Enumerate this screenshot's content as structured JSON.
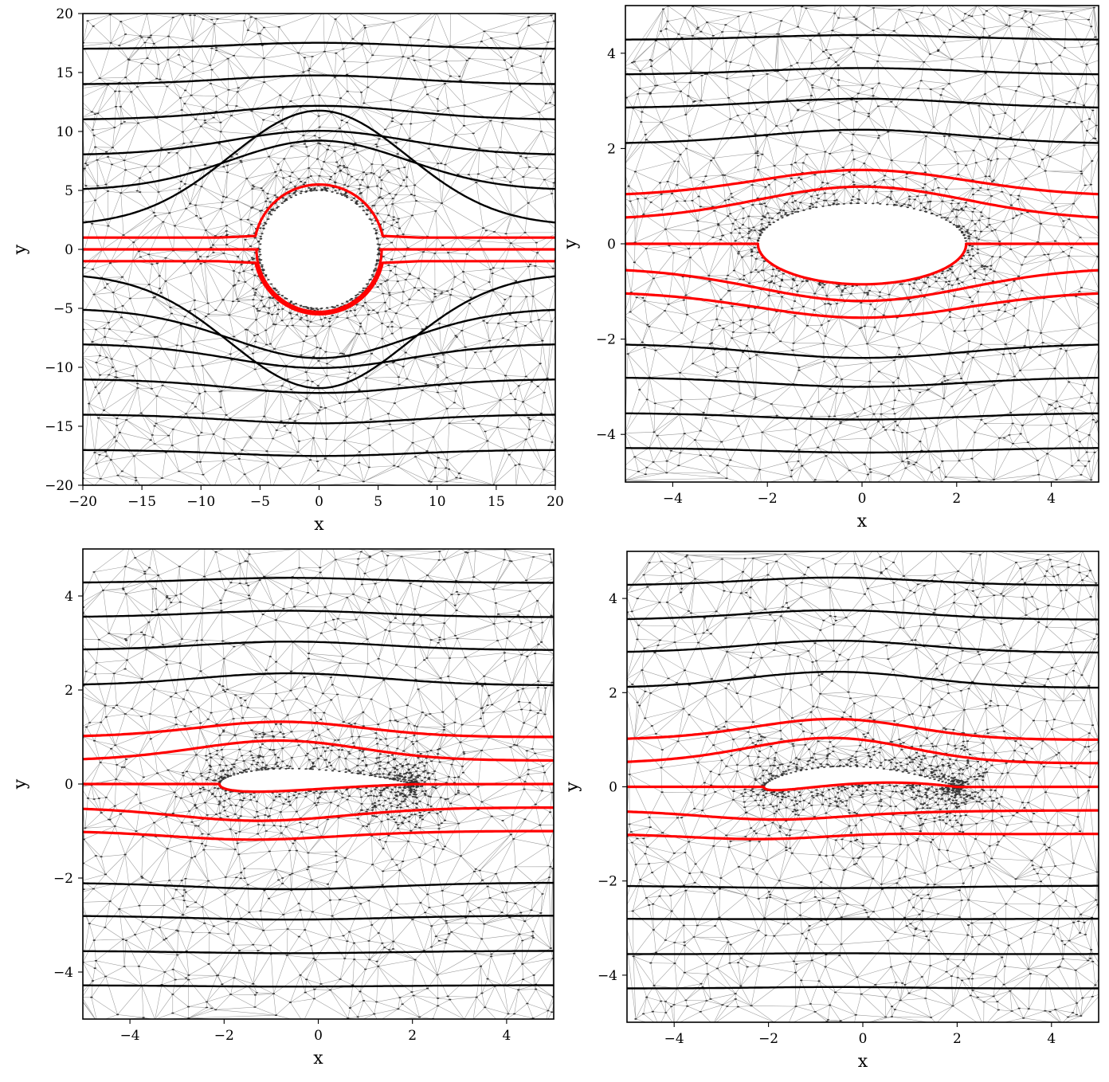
{
  "chart_data": [
    {
      "type": "line",
      "title": "",
      "panel": "top-left",
      "xlabel": "x",
      "ylabel": "y",
      "xlim": [
        -20,
        20
      ],
      "ylim": [
        -20,
        20
      ],
      "xticks": [
        -20,
        -15,
        -10,
        -5,
        0,
        5,
        10,
        15,
        20
      ],
      "yticks": [
        -20,
        -15,
        -10,
        -5,
        0,
        5,
        10,
        15,
        20
      ],
      "xtick_labels": [
        "−20",
        "−15",
        "−10",
        "−5",
        "0",
        "5",
        "10",
        "15",
        "20"
      ],
      "ytick_labels": [
        "−20",
        "−15",
        "−10",
        "−5",
        "0",
        "5",
        "10",
        "15",
        "20"
      ],
      "obstacle": {
        "shape": "circle",
        "center": [
          0,
          0
        ],
        "radius": 5
      },
      "mesh": "triangular",
      "streamlines_black_y0": [
        17,
        14,
        11,
        8,
        5,
        2,
        -2,
        -5,
        -8,
        -11,
        -14,
        -17
      ],
      "streamlines_red_y0": [
        1,
        0,
        -1
      ],
      "colors": {
        "black": "#000000",
        "red": "#ff0000",
        "mesh": "#9a9a9a"
      }
    },
    {
      "type": "line",
      "title": "",
      "panel": "top-right",
      "xlabel": "x",
      "ylabel": "y",
      "xlim": [
        -5,
        5
      ],
      "ylim": [
        -5,
        5
      ],
      "xticks": [
        -4,
        -2,
        0,
        2,
        4
      ],
      "yticks": [
        -4,
        -2,
        0,
        2,
        4
      ],
      "xtick_labels": [
        "−4",
        "−2",
        "0",
        "2",
        "4"
      ],
      "ytick_labels": [
        "−4",
        "−2",
        "0",
        "2",
        "4"
      ],
      "obstacle": {
        "shape": "ellipse",
        "center": [
          0,
          0
        ],
        "semi_axes": [
          2.2,
          0.85
        ]
      },
      "mesh": "triangular",
      "streamlines_black_y0": [
        4.28,
        3.55,
        2.85,
        2.1,
        -2.1,
        -2.8,
        -3.55,
        -4.28
      ],
      "streamlines_red_y0": [
        1.0,
        0.5,
        0,
        -0.5,
        -1.0
      ],
      "colors": {
        "black": "#000000",
        "red": "#ff0000",
        "mesh": "#9a9a9a"
      }
    },
    {
      "type": "line",
      "title": "",
      "panel": "bottom-left",
      "xlabel": "x",
      "ylabel": "y",
      "xlim": [
        -5,
        5
      ],
      "ylim": [
        -5,
        5
      ],
      "xticks": [
        -4,
        -2,
        0,
        2,
        4
      ],
      "yticks": [
        -4,
        -2,
        0,
        2,
        4
      ],
      "xtick_labels": [
        "−4",
        "−2",
        "0",
        "2",
        "4"
      ],
      "ytick_labels": [
        "−4",
        "−2",
        "0",
        "2",
        "4"
      ],
      "obstacle": {
        "shape": "airfoil",
        "leading_edge": [
          -2.1,
          0
        ],
        "trailing_edge": [
          2.0,
          0
        ],
        "thickness": 0.95,
        "camber": 0.1
      },
      "mesh": "triangular",
      "streamlines_black_y0": [
        4.28,
        3.55,
        2.85,
        2.1,
        -2.1,
        -2.8,
        -3.55,
        -4.28
      ],
      "streamlines_red_y0": [
        1.0,
        0.5,
        0,
        -0.5,
        -1.0
      ],
      "colors": {
        "black": "#000000",
        "red": "#ff0000",
        "mesh": "#9a9a9a"
      }
    },
    {
      "type": "line",
      "title": "",
      "panel": "bottom-right",
      "xlabel": "x",
      "ylabel": "y",
      "xlim": [
        -5,
        5
      ],
      "ylim": [
        -5,
        5
      ],
      "xticks": [
        -4,
        -2,
        0,
        2,
        4
      ],
      "yticks": [
        -4,
        -2,
        0,
        2,
        4
      ],
      "xtick_labels": [
        "−4",
        "−2",
        "0",
        "2",
        "4"
      ],
      "ytick_labels": [
        "−4",
        "−2",
        "0",
        "2",
        "4"
      ],
      "obstacle": {
        "shape": "airfoil",
        "leading_edge": [
          -2.1,
          0
        ],
        "trailing_edge": [
          2.0,
          0
        ],
        "thickness": 0.8,
        "camber": 0.25
      },
      "mesh": "triangular",
      "streamlines_black_y0": [
        4.28,
        3.55,
        2.85,
        2.1,
        -2.1,
        -2.8,
        -3.55,
        -4.28
      ],
      "streamlines_red_y0": [
        1.0,
        0.5,
        0,
        -0.5,
        -1.0
      ],
      "colors": {
        "black": "#000000",
        "red": "#ff0000",
        "mesh": "#9a9a9a"
      }
    }
  ]
}
